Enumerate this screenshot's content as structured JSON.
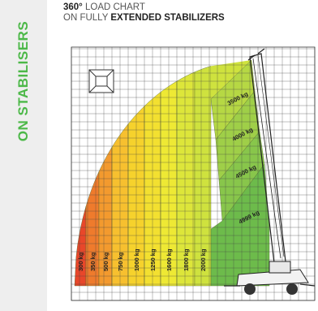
{
  "sidebar": {
    "label": "ON STABILISERS"
  },
  "header": {
    "line1_bold": "360°",
    "line1_rest": " LOAD CHART",
    "line2_rest": "ON FULLY ",
    "line2_bold": "EXTENDED STABILIZERS"
  },
  "colors": {
    "brand_green": "#4cb848"
  },
  "icons": {
    "stabilizer_diagram": "stabilizer-top-view-icon",
    "machine": "telehandler-crane-icon"
  },
  "chart_data": {
    "type": "area",
    "zones": [
      {
        "label": "300 kg",
        "color": "#e8472a"
      },
      {
        "label": "350 kg",
        "color": "#ef7b2c"
      },
      {
        "label": "500 kg",
        "color": "#f39a2e"
      },
      {
        "label": "750 kg",
        "color": "#f7c02f"
      },
      {
        "label": "1000 kg",
        "color": "#f6d22c"
      },
      {
        "label": "1250 kg",
        "color": "#f3e030"
      },
      {
        "label": "1600 kg",
        "color": "#eee934"
      },
      {
        "label": "1800 kg",
        "color": "#dde63a"
      },
      {
        "label": "2000 kg",
        "color": "#cfe23e"
      },
      {
        "label": "3500 kg",
        "color": "#b6d844"
      },
      {
        "label": "4000 kg",
        "color": "#9fcf48"
      },
      {
        "label": "4500 kg",
        "color": "#88c64b"
      },
      {
        "label": "4999 kg",
        "color": "#6dbb4b"
      }
    ]
  }
}
